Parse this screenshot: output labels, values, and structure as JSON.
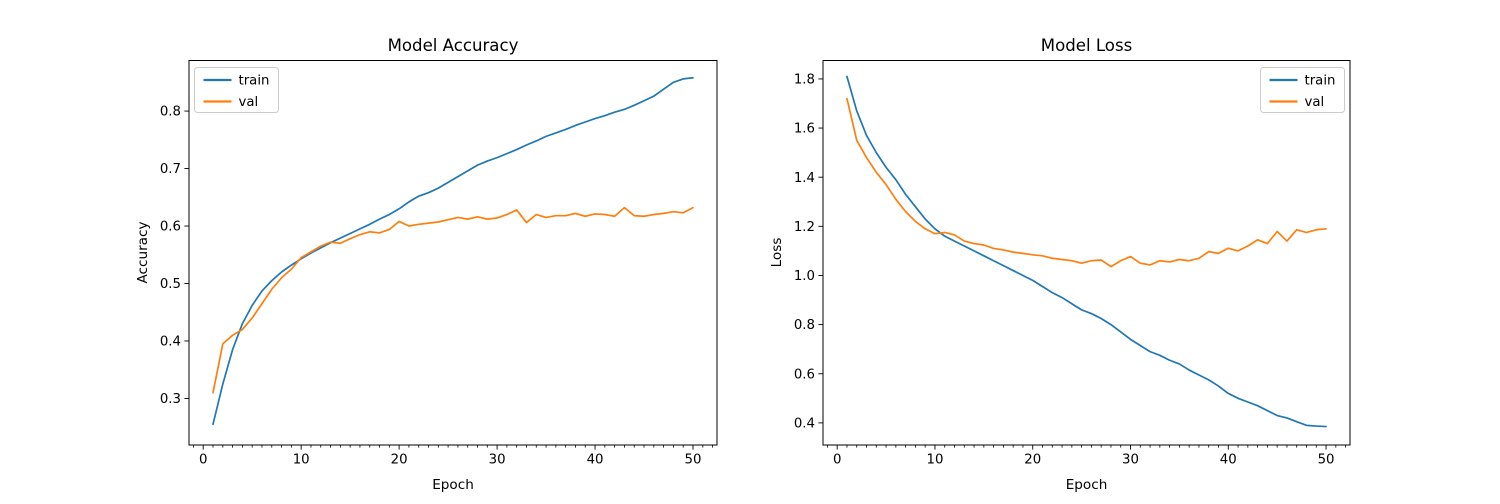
{
  "figure": {
    "background": "#ffffff",
    "spine_color": "#000000",
    "legend_border_color": "#cccccc",
    "legend_background": "#ffffff"
  },
  "chart_data": [
    {
      "id": "accuracy",
      "type": "line",
      "title": "Model Accuracy",
      "xlabel": "Epoch",
      "ylabel": "Accuracy",
      "xlim": [
        -1.45,
        52.45
      ],
      "ylim": [
        0.219,
        0.888
      ],
      "xticks": [
        0,
        10,
        20,
        30,
        40,
        50
      ],
      "yticks": [
        0.3,
        0.4,
        0.5,
        0.6,
        0.7,
        0.8
      ],
      "minor_xtick_step": 1,
      "grid": false,
      "legend_position": "upper-left",
      "x": [
        1,
        2,
        3,
        4,
        5,
        6,
        7,
        8,
        9,
        10,
        11,
        12,
        13,
        14,
        15,
        16,
        17,
        18,
        19,
        20,
        21,
        22,
        23,
        24,
        25,
        26,
        27,
        28,
        29,
        30,
        31,
        32,
        33,
        34,
        35,
        36,
        37,
        38,
        39,
        40,
        41,
        42,
        43,
        44,
        45,
        46,
        47,
        48,
        49,
        50
      ],
      "series": [
        {
          "name": "train",
          "color": "#1f77b4",
          "values": [
            0.255,
            0.325,
            0.385,
            0.43,
            0.462,
            0.487,
            0.505,
            0.52,
            0.532,
            0.543,
            0.553,
            0.562,
            0.571,
            0.579,
            0.587,
            0.595,
            0.603,
            0.612,
            0.62,
            0.63,
            0.642,
            0.652,
            0.658,
            0.666,
            0.676,
            0.686,
            0.696,
            0.706,
            0.713,
            0.719,
            0.726,
            0.733,
            0.741,
            0.748,
            0.756,
            0.762,
            0.768,
            0.775,
            0.781,
            0.787,
            0.792,
            0.798,
            0.803,
            0.81,
            0.818,
            0.826,
            0.838,
            0.85,
            0.856,
            0.858
          ]
        },
        {
          "name": "val",
          "color": "#ff7f0e",
          "values": [
            0.31,
            0.395,
            0.41,
            0.42,
            0.44,
            0.465,
            0.49,
            0.51,
            0.525,
            0.545,
            0.555,
            0.565,
            0.572,
            0.57,
            0.578,
            0.585,
            0.59,
            0.588,
            0.594,
            0.608,
            0.6,
            0.603,
            0.605,
            0.607,
            0.611,
            0.615,
            0.612,
            0.616,
            0.612,
            0.614,
            0.62,
            0.628,
            0.606,
            0.62,
            0.615,
            0.618,
            0.618,
            0.622,
            0.617,
            0.621,
            0.62,
            0.617,
            0.632,
            0.618,
            0.617,
            0.62,
            0.622,
            0.625,
            0.623,
            0.632
          ]
        }
      ]
    },
    {
      "id": "loss",
      "type": "line",
      "title": "Model Loss",
      "xlabel": "Epoch",
      "ylabel": "Loss",
      "xlim": [
        -1.45,
        52.45
      ],
      "ylim": [
        0.31,
        1.875
      ],
      "xticks": [
        0,
        10,
        20,
        30,
        40,
        50
      ],
      "yticks": [
        0.4,
        0.6,
        0.8,
        1.0,
        1.2,
        1.4,
        1.6,
        1.8
      ],
      "minor_xtick_step": 1,
      "grid": false,
      "legend_position": "upper-right",
      "x": [
        1,
        2,
        3,
        4,
        5,
        6,
        7,
        8,
        9,
        10,
        11,
        12,
        13,
        14,
        15,
        16,
        17,
        18,
        19,
        20,
        21,
        22,
        23,
        24,
        25,
        26,
        27,
        28,
        29,
        30,
        31,
        32,
        33,
        34,
        35,
        36,
        37,
        38,
        39,
        40,
        41,
        42,
        43,
        44,
        45,
        46,
        47,
        48,
        49,
        50
      ],
      "series": [
        {
          "name": "train",
          "color": "#1f77b4",
          "values": [
            1.81,
            1.67,
            1.57,
            1.5,
            1.44,
            1.39,
            1.33,
            1.28,
            1.23,
            1.19,
            1.16,
            1.14,
            1.12,
            1.1,
            1.08,
            1.06,
            1.04,
            1.02,
            1.0,
            0.98,
            0.955,
            0.93,
            0.91,
            0.885,
            0.86,
            0.845,
            0.825,
            0.8,
            0.77,
            0.74,
            0.715,
            0.69,
            0.675,
            0.655,
            0.64,
            0.615,
            0.595,
            0.575,
            0.55,
            0.52,
            0.5,
            0.485,
            0.47,
            0.45,
            0.43,
            0.42,
            0.405,
            0.39,
            0.387,
            0.385
          ]
        },
        {
          "name": "val",
          "color": "#ff7f0e",
          "values": [
            1.72,
            1.55,
            1.48,
            1.42,
            1.37,
            1.31,
            1.26,
            1.22,
            1.19,
            1.17,
            1.175,
            1.165,
            1.14,
            1.13,
            1.124,
            1.11,
            1.104,
            1.095,
            1.09,
            1.084,
            1.08,
            1.07,
            1.065,
            1.06,
            1.05,
            1.06,
            1.063,
            1.036,
            1.06,
            1.077,
            1.05,
            1.043,
            1.06,
            1.055,
            1.065,
            1.06,
            1.07,
            1.097,
            1.09,
            1.111,
            1.1,
            1.12,
            1.145,
            1.13,
            1.179,
            1.14,
            1.186,
            1.175,
            1.186,
            1.19
          ]
        }
      ]
    }
  ]
}
